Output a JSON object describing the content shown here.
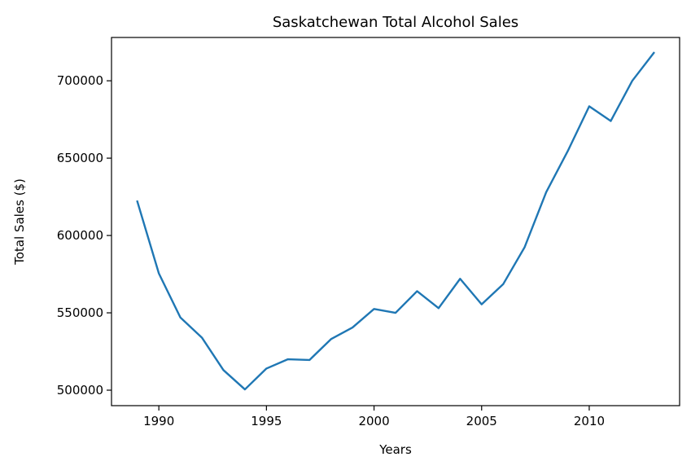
{
  "chart_data": {
    "type": "line",
    "title": "Saskatchewan Total Alcohol Sales",
    "xlabel": "Years",
    "ylabel": "Total Sales ($)",
    "xlim": [
      1987.8,
      2014.2
    ],
    "ylim": [
      490000,
      728000
    ],
    "xticks": [
      1990,
      1995,
      2000,
      2005,
      2010
    ],
    "yticks": [
      500000,
      550000,
      600000,
      650000,
      700000
    ],
    "grid": false,
    "series": [
      {
        "color": "#1f77b4",
        "x": [
          1989,
          1990,
          1991,
          1992,
          1993,
          1994,
          1995,
          1996,
          1997,
          1998,
          1999,
          2000,
          2001,
          2002,
          2003,
          2004,
          2005,
          2006,
          2007,
          2008,
          2009,
          2010,
          2011,
          2012,
          2013
        ],
        "y": [
          622000,
          575500,
          547000,
          534000,
          513000,
          500500,
          514000,
          520000,
          519500,
          533000,
          540500,
          552500,
          550000,
          564000,
          553000,
          572000,
          555500,
          568500,
          592500,
          628000,
          654500,
          683500,
          674000,
          700000,
          718000
        ]
      }
    ]
  }
}
